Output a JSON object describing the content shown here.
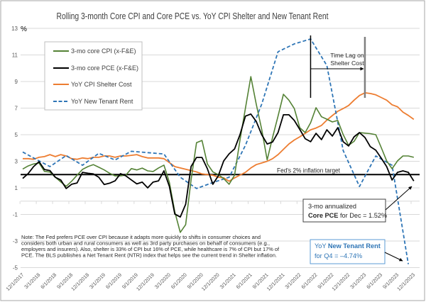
{
  "chart_data": {
    "type": "line",
    "title": "Rolling 3-month Core CPI and Core PCE vs. YoY CPI Shelter and New Tenant Rent",
    "xlabel": "",
    "ylabel": "",
    "y_unit_label": "%",
    "ylim": [
      -5,
      13
    ],
    "yticks": [
      13,
      11,
      9,
      7,
      5,
      3,
      1,
      -1,
      -3,
      -5
    ],
    "grid": true,
    "legend_position": "top-left",
    "x": [
      "12/1/2017",
      "1/1/2018",
      "2/1/2018",
      "3/1/2018",
      "4/1/2018",
      "5/1/2018",
      "6/1/2018",
      "7/1/2018",
      "8/1/2018",
      "9/1/2018",
      "10/1/2018",
      "11/1/2018",
      "12/1/2018",
      "1/1/2019",
      "2/1/2019",
      "3/1/2019",
      "4/1/2019",
      "5/1/2019",
      "6/1/2019",
      "7/1/2019",
      "8/1/2019",
      "9/1/2019",
      "10/1/2019",
      "11/1/2019",
      "12/1/2019",
      "1/1/2020",
      "2/1/2020",
      "3/1/2020",
      "4/1/2020",
      "5/1/2020",
      "6/1/2020",
      "7/1/2020",
      "8/1/2020",
      "9/1/2020",
      "10/1/2020",
      "11/1/2020",
      "12/1/2020",
      "1/1/2021",
      "2/1/2021",
      "3/1/2021",
      "4/1/2021",
      "5/1/2021",
      "6/1/2021",
      "7/1/2021",
      "8/1/2021",
      "9/1/2021",
      "10/1/2021",
      "11/1/2021",
      "12/1/2021",
      "1/1/2022",
      "2/1/2022",
      "3/1/2022",
      "4/1/2022",
      "5/1/2022",
      "6/1/2022",
      "7/1/2022",
      "8/1/2022",
      "9/1/2022",
      "10/1/2022",
      "11/1/2022",
      "12/1/2022",
      "1/1/2023",
      "2/1/2023",
      "3/1/2023",
      "4/1/2023",
      "5/1/2023",
      "6/1/2023",
      "7/1/2023",
      "8/1/2023",
      "9/1/2023",
      "10/1/2023",
      "11/1/2023",
      "12/1/2023"
    ],
    "x_tick_labels": [
      "12/1/2017",
      "3/1/2018",
      "6/1/2018",
      "9/1/2018",
      "12/1/2018",
      "3/1/2019",
      "6/1/2019",
      "9/1/2019",
      "12/1/2019",
      "3/1/2020",
      "6/1/2020",
      "9/1/2020",
      "12/1/2020",
      "3/1/2021",
      "6/1/2021",
      "9/1/2021",
      "12/1/2021",
      "3/1/2022",
      "6/1/2022",
      "9/1/2022",
      "12/1/2022",
      "3/1/2023",
      "6/1/2023",
      "9/1/2023",
      "12/1/2023"
    ],
    "series": [
      {
        "name": "3-mo core CPI (x-F&E)",
        "key": "core-cpi",
        "color": "#548235",
        "style": "solid",
        "values": [
          2.42,
          2.65,
          2.8,
          2.87,
          2.24,
          2.19,
          1.8,
          1.45,
          1.12,
          1.5,
          1.95,
          2.39,
          2.6,
          2.75,
          2.55,
          2.35,
          2.1,
          1.9,
          1.9,
          1.96,
          2.45,
          2.35,
          2.49,
          2.28,
          2.23,
          2.5,
          2.71,
          1.4,
          -0.8,
          -2.35,
          -1.77,
          1.6,
          4.4,
          4.57,
          2.8,
          2.2,
          2.0,
          1.7,
          1.27,
          1.96,
          4.6,
          7.0,
          9.37,
          7.3,
          5.4,
          3.1,
          4.8,
          6.4,
          8.04,
          7.6,
          6.97,
          5.53,
          5.16,
          5.9,
          7.03,
          6.35,
          6.17,
          5.96,
          6.07,
          5.0,
          4.2,
          4.5,
          5.16,
          5.12,
          5.08,
          5.0,
          4.04,
          3.03,
          2.44,
          3.03,
          3.4,
          3.4,
          3.3
        ]
      },
      {
        "name": "3-mo core PCE (x-F&E)",
        "key": "core-pce",
        "color": "#000000",
        "style": "solid",
        "values": [
          1.71,
          2.07,
          2.6,
          2.97,
          2.38,
          2.3,
          1.8,
          1.59,
          0.95,
          1.27,
          1.37,
          2.17,
          2.1,
          2.05,
          1.8,
          1.25,
          1.35,
          1.53,
          2.07,
          1.9,
          1.6,
          1.3,
          1.43,
          1.0,
          1.43,
          1.53,
          2.28,
          1.1,
          -0.97,
          -1.19,
          -0.23,
          2.6,
          3.29,
          3.29,
          2.44,
          1.27,
          1.9,
          3.03,
          3.56,
          3.93,
          5.0,
          6.4,
          6.55,
          6.0,
          5.0,
          4.3,
          4.45,
          5.16,
          6.5,
          6.5,
          6.07,
          5.4,
          4.7,
          4.47,
          5.1,
          4.63,
          5.37,
          4.9,
          5.53,
          4.47,
          4.15,
          4.84,
          5.16,
          4.79,
          4.1,
          3.83,
          3.24,
          2.6,
          1.59,
          2.17,
          2.28,
          2.17,
          1.52
        ]
      },
      {
        "name": "YoY CPI Shelter Cost",
        "key": "shelter",
        "color": "#ED7D31",
        "style": "solid",
        "values": [
          3.2,
          3.2,
          3.15,
          3.3,
          3.35,
          3.5,
          3.35,
          3.5,
          3.4,
          3.2,
          3.15,
          3.25,
          3.2,
          3.3,
          3.3,
          3.4,
          3.4,
          3.3,
          3.4,
          3.4,
          3.45,
          3.5,
          3.35,
          3.25,
          3.25,
          3.25,
          3.2,
          2.9,
          2.6,
          2.5,
          2.4,
          2.3,
          2.2,
          2.05,
          2.0,
          1.95,
          1.8,
          1.75,
          1.5,
          1.75,
          1.96,
          2.17,
          2.5,
          2.75,
          2.87,
          3.0,
          3.2,
          3.5,
          3.9,
          4.3,
          4.6,
          4.84,
          5.1,
          5.37,
          5.5,
          5.7,
          6.1,
          6.44,
          6.76,
          6.97,
          7.2,
          7.6,
          7.95,
          8.15,
          8.1,
          8.0,
          7.8,
          7.6,
          7.25,
          7.1,
          6.7,
          6.45,
          6.15
        ]
      },
      {
        "name": "YoY New Tenant Rent",
        "key": "new-tenant-rent",
        "color": "#2E75B6",
        "style": "dashed",
        "values": [
          3.7,
          null,
          3.25,
          null,
          null,
          2.6,
          null,
          null,
          3.43,
          null,
          null,
          2.7,
          null,
          null,
          3.6,
          null,
          null,
          3.1,
          null,
          null,
          3.75,
          null,
          null,
          3.65,
          null,
          null,
          3.55,
          null,
          null,
          1.8,
          null,
          null,
          0.95,
          null,
          null,
          1.4,
          null,
          null,
          1.8,
          null,
          null,
          4.2,
          null,
          null,
          7.3,
          null,
          null,
          11.24,
          null,
          null,
          11.83,
          null,
          null,
          12.2,
          null,
          null,
          10.2,
          null,
          null,
          3.8,
          null,
          null,
          1.1,
          null,
          null,
          3.4,
          null,
          null,
          2.7,
          null,
          null,
          -4.74,
          null
        ]
      }
    ],
    "reference_line": {
      "value": 2,
      "label": "Fed's 2% inflation target",
      "color": "#000000"
    },
    "annotations": {
      "time_lag": {
        "line1": "Time Lag on",
        "line2": "Shelter Cost",
        "from_date": "5/1/2022",
        "to_date": "3/1/2023"
      },
      "pce_callout": {
        "line1": "3-mo annualized",
        "bold": "Core PCE",
        "rest": " for Dec = 1.52%"
      },
      "ntr_callout": {
        "prefix": "YoY ",
        "bold": "New Tenant Rent",
        "line2": "for Q4 = –4.74%"
      },
      "note": [
        "Note: The Fed prefers PCE over CPI because it adapts more quickly to shifts in consumer choices and",
        "considers both urban and rural consumers as well as 3rd party purchases on behalf of consumers (e.g.,",
        "employers and insurers). Also, shelter is 33% of CPI but 16% of PCE, while healthcare is 7% of CPI but 17% of",
        "PCE. The BLS publiishes a Net Tenant Rent (NTR) index that helps see the current trend in Shelter inflation."
      ]
    }
  }
}
